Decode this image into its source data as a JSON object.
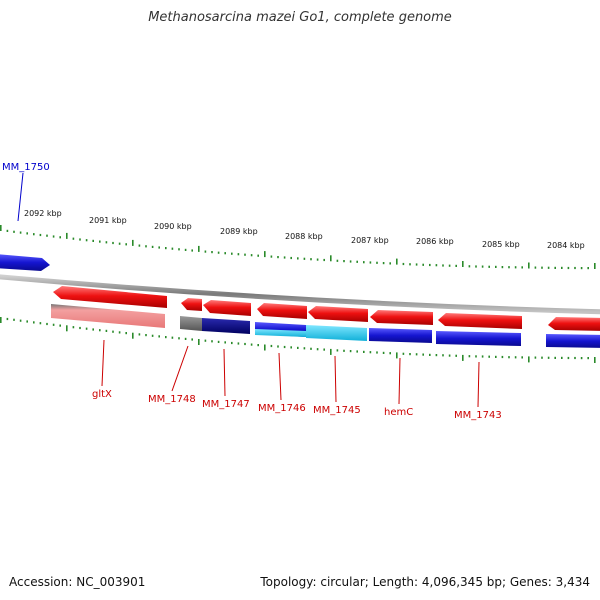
{
  "title": "Methanosarcina mazei Go1, complete genome",
  "footer": {
    "accession": "Accession: NC_003901",
    "summary": "Topology: circular; Length: 4,096,345 bp; Genes: 3,434"
  },
  "colors": {
    "forward_gene": "#1515d0",
    "reverse_gene": "#ee1111",
    "reverse_cds": "#f08080",
    "dark_cds": "#000080",
    "light_cds": "#22c8ee",
    "pseudo": "#777777",
    "backbone": "#8a8a8a",
    "ruler": "#2a8a2a",
    "gene_label_reverse": "#cc0000",
    "gene_label_forward": "#0000cc"
  },
  "scale_ticks": [
    {
      "label": "2092 kbp"
    },
    {
      "label": "2091 kbp"
    },
    {
      "label": "2090 kbp"
    },
    {
      "label": "2089 kbp"
    },
    {
      "label": "2088 kbp"
    },
    {
      "label": "2087 kbp"
    },
    {
      "label": "2086 kbp"
    },
    {
      "label": "2085 kbp"
    },
    {
      "label": "2084 kbp"
    }
  ],
  "genes": [
    {
      "name": "MM_1750",
      "strand": "+"
    },
    {
      "name": "gltX",
      "strand": "-"
    },
    {
      "name": "MM_1748",
      "strand": "-"
    },
    {
      "name": "MM_1747",
      "strand": "-"
    },
    {
      "name": "MM_1746",
      "strand": "-"
    },
    {
      "name": "MM_1745",
      "strand": "-"
    },
    {
      "name": "hemC",
      "strand": "-"
    },
    {
      "name": "MM_1743",
      "strand": "-"
    }
  ]
}
